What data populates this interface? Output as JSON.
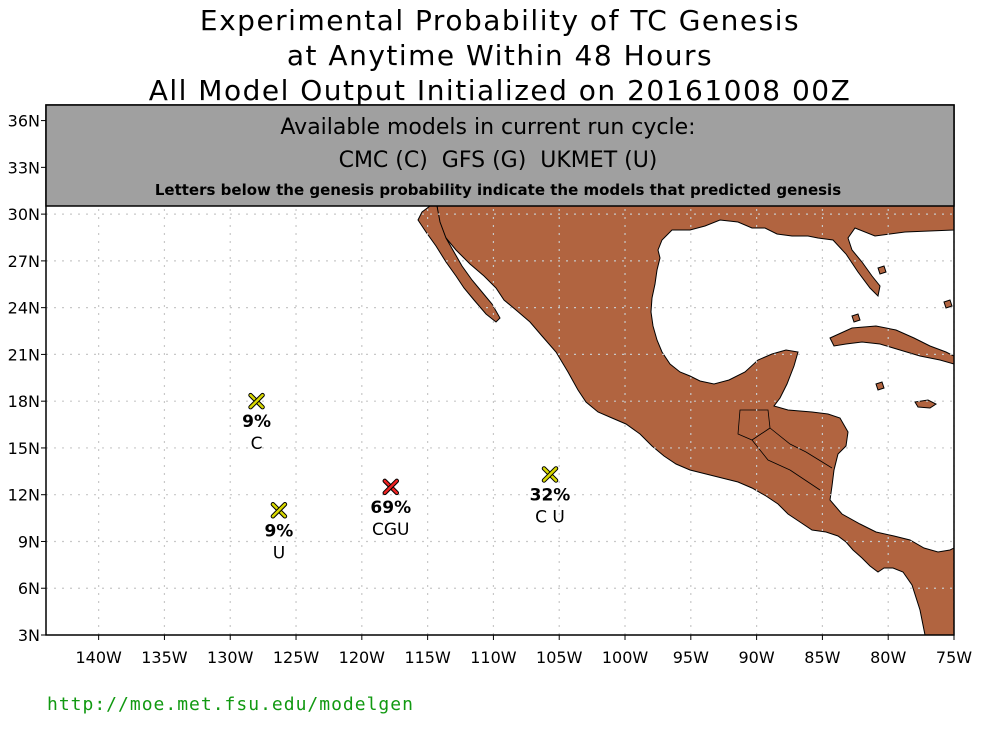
{
  "title": {
    "line1": "Experimental Probability of TC Genesis",
    "line2": "at Anytime Within 48 Hours",
    "line3": "All Model Output Initialized on 20161008 00Z"
  },
  "banner": {
    "heading": "Available models in current run cycle:",
    "models": "CMC (C)  GFS (G)  UKMET (U)",
    "note": "Letters below the genesis probability indicate the models that predicted genesis"
  },
  "map": {
    "lat_range": [
      3,
      37
    ],
    "lon_range": [
      -144,
      -75
    ],
    "lat_ticks": [
      "3N",
      "6N",
      "9N",
      "12N",
      "15N",
      "18N",
      "21N",
      "24N",
      "27N",
      "30N",
      "33N",
      "36N"
    ],
    "lon_ticks": [
      "140W",
      "135W",
      "130W",
      "125W",
      "120W",
      "115W",
      "110W",
      "105W",
      "100W",
      "95W",
      "90W",
      "85W",
      "80W",
      "75W"
    ],
    "land_color": "#b16440",
    "grid_color": "#c8c8c8"
  },
  "storms": [
    {
      "lat": 18.0,
      "lon": -128.0,
      "prob": "9%",
      "models": "C",
      "color": "#d8d800"
    },
    {
      "lat": 11.0,
      "lon": -126.3,
      "prob": "9%",
      "models": "U",
      "color": "#d8d800"
    },
    {
      "lat": 12.5,
      "lon": -117.8,
      "prob": "69%",
      "models": "CGU",
      "color": "#ee2222"
    },
    {
      "lat": 13.3,
      "lon": -105.7,
      "prob": "32%",
      "models": "C  U",
      "color": "#d8d800"
    }
  ],
  "footer": {
    "url": "http://moe.met.fsu.edu/modelgen",
    "color": "#119911"
  }
}
